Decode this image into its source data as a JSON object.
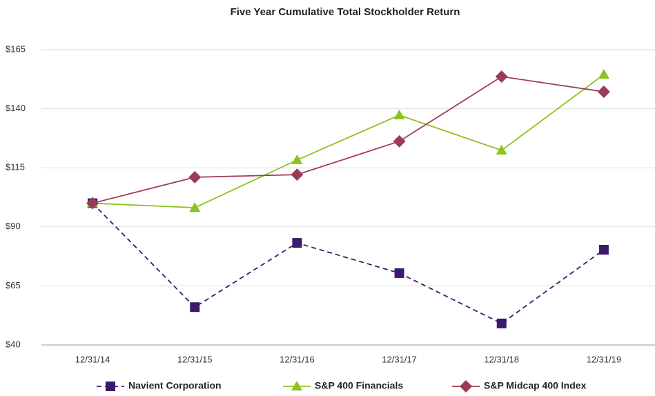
{
  "chart_data": {
    "type": "line",
    "title": "Five Year Cumulative Total Stockholder Return",
    "categories": [
      "12/31/14",
      "12/31/15",
      "12/31/16",
      "12/31/17",
      "12/31/18",
      "12/31/19"
    ],
    "series": [
      {
        "name": "Navient Corporation",
        "color": "#3b1a6b",
        "marker": "square",
        "dashed": true,
        "values": [
          100,
          56,
          83.2,
          70.4,
          49.1,
          80.3
        ]
      },
      {
        "name": "S&P 400 Financials",
        "color": "#8dc21f",
        "marker": "triangle",
        "dashed": false,
        "values": [
          100,
          98.1,
          118.3,
          137.3,
          122.4,
          154.5
        ]
      },
      {
        "name": "S&P Midcap 400 Index",
        "color": "#9b3b55",
        "marker": "diamond",
        "dashed": false,
        "values": [
          100,
          111,
          112.1,
          126.2,
          153.6,
          147.2
        ]
      }
    ],
    "ylim": [
      40,
      165
    ],
    "yticks": [
      {
        "value": 40,
        "label": "$40"
      },
      {
        "value": 65,
        "label": "$65"
      },
      {
        "value": 90,
        "label": "$90"
      },
      {
        "value": 115,
        "label": "$115"
      },
      {
        "value": 140,
        "label": "$140"
      },
      {
        "value": 165,
        "label": "$165"
      }
    ],
    "grid": true,
    "legend": "bottom"
  }
}
